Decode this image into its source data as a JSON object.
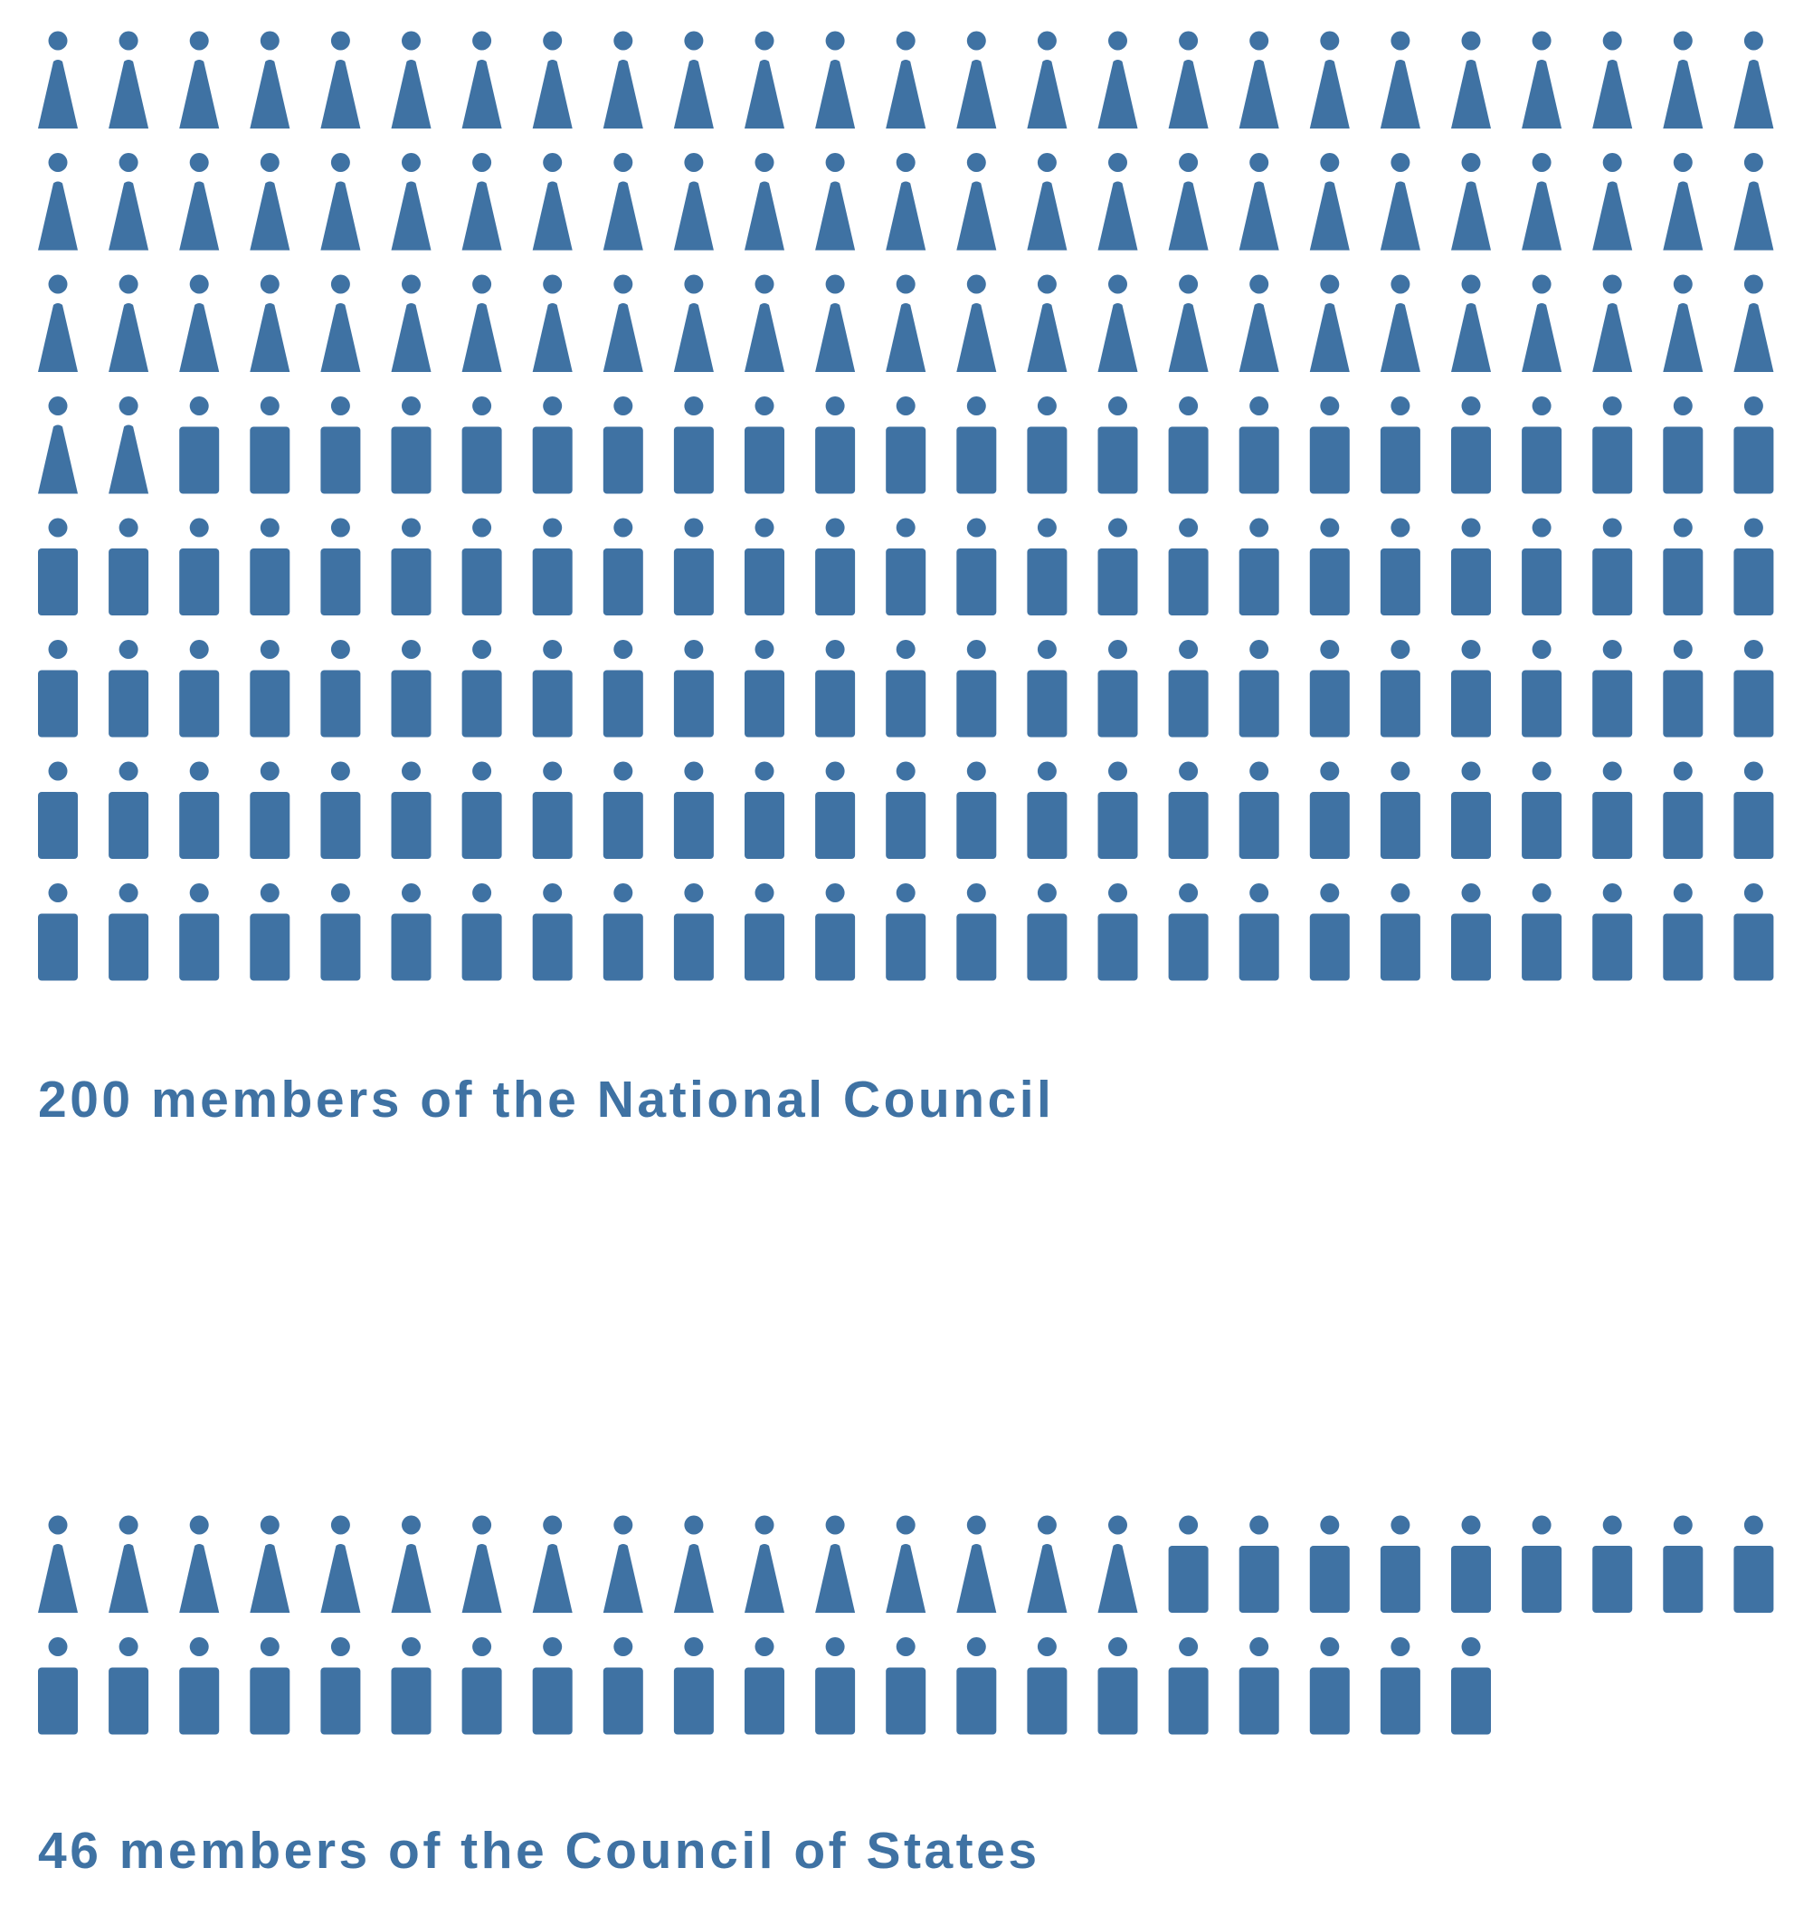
{
  "accent_color": "#3f72a3",
  "background_color": "#ffffff",
  "icons": {
    "women": "woman-icon",
    "men": "man-icon"
  },
  "chart_data": [
    {
      "type": "pictogram",
      "title": "200 members of the National Council",
      "total": 200,
      "icons_per_row": 25,
      "series": [
        {
          "icon": "woman-icon",
          "value": 77
        },
        {
          "icon": "man-icon",
          "value": 123
        }
      ]
    },
    {
      "type": "pictogram",
      "title": "46 members of the Council of States",
      "total": 46,
      "icons_per_row": 25,
      "series": [
        {
          "icon": "woman-icon",
          "value": 16
        },
        {
          "icon": "man-icon",
          "value": 30
        }
      ]
    }
  ]
}
